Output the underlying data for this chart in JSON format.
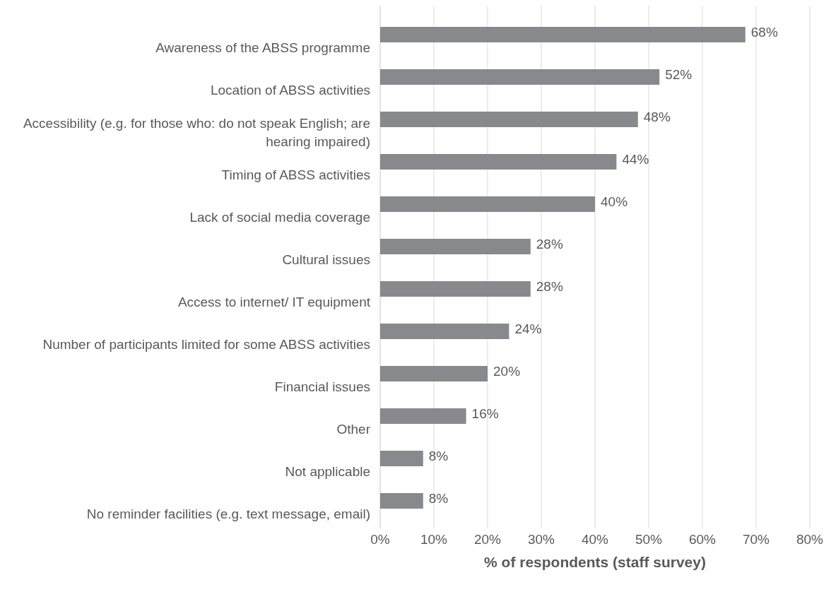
{
  "chart_data": {
    "type": "bar",
    "orientation": "horizontal",
    "xlabel": "% of respondents (staff survey)",
    "categories": [
      "Awareness of the ABSS programme",
      "Location of ABSS activities",
      "Accessibility (e.g. for those who: do not speak English; are hearing impaired)",
      "Timing of ABSS activities",
      "Lack of social media coverage",
      "Cultural issues",
      "Access to internet/ IT equipment",
      "Number of participants limited for some ABSS activities",
      "Financial issues",
      "Other",
      "Not applicable",
      "No reminder facilities (e.g. text message, email)"
    ],
    "values": [
      68,
      52,
      48,
      44,
      40,
      28,
      28,
      24,
      20,
      16,
      8,
      8
    ],
    "color": "#87898c",
    "value_labels": [
      "68%",
      "52%",
      "48%",
      "44%",
      "40%",
      "28%",
      "28%",
      "24%",
      "20%",
      "16%",
      "8%",
      "8%"
    ],
    "xlim": [
      0,
      80
    ],
    "xticks": [
      {
        "value": 0,
        "label": "0%"
      },
      {
        "value": 10,
        "label": "10%"
      },
      {
        "value": 20,
        "label": "20%"
      },
      {
        "value": 30,
        "label": "30%"
      },
      {
        "value": 40,
        "label": "40%"
      },
      {
        "value": 50,
        "label": "50%"
      },
      {
        "value": 60,
        "label": "60%"
      },
      {
        "value": 70,
        "label": "70%"
      },
      {
        "value": 80,
        "label": "80%"
      }
    ],
    "grid": "x"
  }
}
